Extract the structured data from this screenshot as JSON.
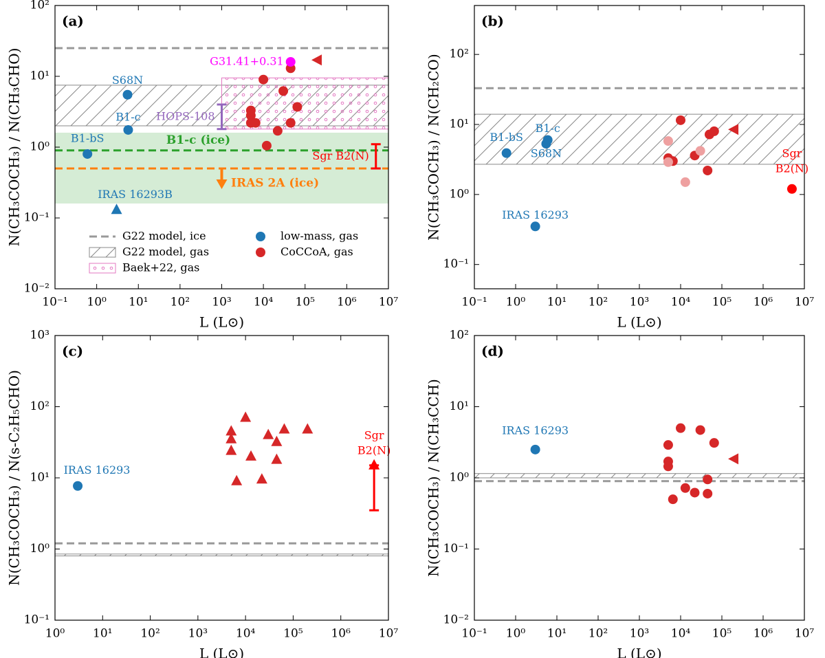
{
  "chart_data": [
    {
      "type": "scatter",
      "panel_label": "(a)",
      "xlabel": "L (L⊙)",
      "ylabel": "N(CH₃COCH₃)  /  N(CH₃CHO)",
      "xscale": "log",
      "yscale": "log",
      "xlim": [
        0.1,
        10000000
      ],
      "ylim": [
        0.01,
        100
      ],
      "xticks": [
        {
          "value": 0.1,
          "label": "10⁻¹"
        },
        {
          "value": 1,
          "label": "10⁰"
        },
        {
          "value": 10,
          "label": "10¹"
        },
        {
          "value": 100,
          "label": "10²"
        },
        {
          "value": 1000,
          "label": "10³"
        },
        {
          "value": 10000,
          "label": "10⁴"
        },
        {
          "value": 100000,
          "label": "10⁵"
        },
        {
          "value": 1000000,
          "label": "10⁶"
        },
        {
          "value": 10000000,
          "label": "10⁷"
        }
      ],
      "yticks": [
        {
          "value": 0.01,
          "label": "10⁻²"
        },
        {
          "value": 0.1,
          "label": "10⁻¹"
        },
        {
          "value": 1,
          "label": "10⁰"
        },
        {
          "value": 10,
          "label": "10¹"
        },
        {
          "value": 100,
          "label": "10²"
        }
      ],
      "bands": [
        {
          "name": "G22 model, gas",
          "low": 2,
          "high": 7.5,
          "color": "#888888",
          "pattern": "hatch"
        },
        {
          "name": "Baek+22, gas",
          "xrange": [
            1000,
            10000000
          ],
          "low": 1.8,
          "high": 9.5,
          "color": "#e377c2",
          "pattern": "dots"
        },
        {
          "low": 0.16,
          "high": 1.6,
          "color": "#2ca02c",
          "pattern": "fill"
        }
      ],
      "hlines": [
        {
          "name": "G22 model, ice",
          "value": 25,
          "color": "#999999"
        },
        {
          "label": "B1-c (ice)",
          "value": 0.9,
          "color": "#2ca02c"
        },
        {
          "label": "IRAS 2A (ice)",
          "value": 0.5,
          "color": "#ff7f0e",
          "arrow_x": 1000
        }
      ],
      "ranges": [
        {
          "label": "HOPS-108",
          "x": 1000,
          "low": 1.8,
          "high": 4,
          "color": "#9467bd"
        },
        {
          "label": "Sgr B2(N)",
          "x": 5000000,
          "low": 0.5,
          "high": 1.1,
          "color": "#ff0000"
        }
      ],
      "series": [
        {
          "name": "low-mass, gas",
          "color": "#1f77b4",
          "x": [
            5.5,
            5.7,
            0.6,
            3
          ],
          "values": [
            5.5,
            1.75,
            0.8,
            0.13
          ],
          "markers": [
            "circle",
            "circle",
            "circle",
            "up"
          ],
          "labels": [
            "S68N",
            "B1-c",
            "B1-bS",
            "IRAS 16293B"
          ]
        },
        {
          "name": "CoCCoA, gas",
          "color": "#d62728",
          "x": [
            10000,
            30000,
            45000,
            5000,
            5000,
            5000,
            6500,
            22000,
            12000,
            45000,
            65000,
            200000
          ],
          "values": [
            9,
            6.2,
            13,
            3.3,
            2.8,
            2.2,
            2.2,
            1.7,
            1.05,
            2.2,
            3.7,
            17
          ],
          "markers": [
            "circle",
            "circle",
            "circle",
            "circle",
            "circle",
            "circle",
            "circle",
            "circle",
            "circle",
            "circle",
            "circle",
            "left"
          ]
        },
        {
          "color": "#ff00ff",
          "x": [
            45000
          ],
          "values": [
            16
          ],
          "markers": [
            "circle"
          ],
          "labels": [
            "G31.41+0.31"
          ]
        }
      ],
      "legend": "lower left"
    },
    {
      "type": "scatter",
      "panel_label": "(b)",
      "xlabel": "L (L⊙)",
      "ylabel": "N(CH₃COCH₃)  /  N(CH₂CO)",
      "xscale": "log",
      "yscale": "log",
      "xlim": [
        0.1,
        10000000
      ],
      "ylim": [
        0.045,
        500
      ],
      "xticks": [
        {
          "value": 0.1,
          "label": "10⁻¹"
        },
        {
          "value": 1,
          "label": "10⁰"
        },
        {
          "value": 10,
          "label": "10¹"
        },
        {
          "value": 100,
          "label": "10²"
        },
        {
          "value": 1000,
          "label": "10³"
        },
        {
          "value": 10000,
          "label": "10⁴"
        },
        {
          "value": 100000,
          "label": "10⁵"
        },
        {
          "value": 1000000,
          "label": "10⁶"
        },
        {
          "value": 10000000,
          "label": "10⁷"
        }
      ],
      "yticks": [
        {
          "value": 0.1,
          "label": "10⁻¹"
        },
        {
          "value": 1,
          "label": "10⁰"
        },
        {
          "value": 10,
          "label": "10¹"
        },
        {
          "value": 100,
          "label": "10²"
        }
      ],
      "bands": [
        {
          "low": 2.7,
          "high": 14,
          "color": "#888888",
          "pattern": "hatch"
        }
      ],
      "hlines": [
        {
          "value": 33,
          "color": "#999999"
        }
      ],
      "series": [
        {
          "color": "#1f77b4",
          "x": [
            0.6,
            6,
            5.5,
            3
          ],
          "values": [
            3.9,
            6,
            5.3,
            0.35
          ],
          "markers": [
            "circle",
            "circle",
            "circle",
            "circle"
          ],
          "labels": [
            "B1-bS",
            "B1-c",
            "S68N",
            "IRAS 16293"
          ]
        },
        {
          "color": "#d62728",
          "x": [
            10000,
            5000,
            6500,
            22000,
            50000,
            65000,
            45000,
            200000
          ],
          "values": [
            11.5,
            3.3,
            3.0,
            3.6,
            7.2,
            8,
            2.2,
            8.5
          ],
          "markers": [
            "circle",
            "circle",
            "circle",
            "circle",
            "circle",
            "circle",
            "circle",
            "left"
          ]
        },
        {
          "color": "#eea0a0",
          "x": [
            5000,
            5000,
            13000,
            30000
          ],
          "values": [
            5.8,
            2.9,
            1.5,
            4.2
          ],
          "markers": [
            "circle",
            "circle",
            "circle",
            "circle"
          ]
        },
        {
          "color": "#ff0000",
          "x": [
            5000000
          ],
          "values": [
            1.2
          ],
          "markers": [
            "circle"
          ],
          "labels": [
            [
              "Sgr",
              "B2(N)"
            ]
          ]
        }
      ]
    },
    {
      "type": "scatter",
      "panel_label": "(c)",
      "xlabel": "L (L⊙)",
      "ylabel": "N(CH₃COCH₃)  /  N(s-C₂H₅CHO)",
      "xscale": "log",
      "yscale": "log",
      "xlim": [
        1,
        10000000
      ],
      "ylim": [
        0.1,
        1000
      ],
      "xticks": [
        {
          "value": 1,
          "label": "10⁰"
        },
        {
          "value": 10,
          "label": "10¹"
        },
        {
          "value": 100,
          "label": "10²"
        },
        {
          "value": 1000,
          "label": "10³"
        },
        {
          "value": 10000,
          "label": "10⁴"
        },
        {
          "value": 100000,
          "label": "10⁵"
        },
        {
          "value": 1000000,
          "label": "10⁶"
        },
        {
          "value": 10000000,
          "label": "10⁷"
        }
      ],
      "yticks": [
        {
          "value": 0.1,
          "label": "10⁻¹"
        },
        {
          "value": 1,
          "label": "10⁰"
        },
        {
          "value": 10,
          "label": "10¹"
        },
        {
          "value": 100,
          "label": "10²"
        },
        {
          "value": 1000,
          "label": "10³"
        }
      ],
      "bands": [
        {
          "low": 0.8,
          "high": 0.85,
          "color": "#888888",
          "pattern": "hatch"
        }
      ],
      "hlines": [
        {
          "value": 1.2,
          "color": "#999999"
        }
      ],
      "ranges": [
        {
          "x": 5000000,
          "low": 3.5,
          "high": 15,
          "color": "#ff0000"
        }
      ],
      "series": [
        {
          "color": "#1f77b4",
          "x": [
            3
          ],
          "values": [
            7.7
          ],
          "markers": [
            "circle"
          ],
          "labels": [
            "IRAS 16293"
          ]
        },
        {
          "color": "#d62728",
          "x": [
            5000,
            5000,
            5000,
            6500,
            10000,
            13000,
            22000,
            30000,
            45000,
            45000,
            65000,
            200000
          ],
          "values": [
            45,
            35,
            24,
            9,
            70,
            20,
            9.5,
            40,
            32,
            18,
            48,
            48
          ],
          "markers": [
            "up",
            "up",
            "up",
            "up",
            "up",
            "up",
            "up",
            "up",
            "up",
            "up",
            "up",
            "up"
          ]
        },
        {
          "color": "#ff0000",
          "x": [
            5000000
          ],
          "values": [
            15
          ],
          "markers": [
            "up"
          ],
          "labels": [
            [
              "Sgr",
              "B2(N)"
            ]
          ]
        }
      ]
    },
    {
      "type": "scatter",
      "panel_label": "(d)",
      "xlabel": "L (L⊙)",
      "ylabel": "N(CH₃COCH₃)  /  N(CH₃CCH)",
      "xscale": "log",
      "yscale": "log",
      "xlim": [
        0.1,
        10000000
      ],
      "ylim": [
        0.01,
        100
      ],
      "xticks": [
        {
          "value": 0.1,
          "label": "10⁻¹"
        },
        {
          "value": 1,
          "label": "10⁰"
        },
        {
          "value": 10,
          "label": "10¹"
        },
        {
          "value": 100,
          "label": "10²"
        },
        {
          "value": 1000,
          "label": "10³"
        },
        {
          "value": 10000,
          "label": "10⁴"
        },
        {
          "value": 100000,
          "label": "10⁵"
        },
        {
          "value": 1000000,
          "label": "10⁶"
        },
        {
          "value": 10000000,
          "label": "10⁷"
        }
      ],
      "yticks": [
        {
          "value": 0.01,
          "label": "10⁻²"
        },
        {
          "value": 0.1,
          "label": "10⁻¹"
        },
        {
          "value": 1,
          "label": "10⁰"
        },
        {
          "value": 10,
          "label": "10¹"
        },
        {
          "value": 100,
          "label": "10²"
        }
      ],
      "bands": [
        {
          "low": 1.0,
          "high": 1.15,
          "color": "#888888",
          "pattern": "hatch"
        }
      ],
      "hlines": [
        {
          "value": 0.9,
          "color": "#999999"
        }
      ],
      "series": [
        {
          "color": "#1f77b4",
          "x": [
            3
          ],
          "values": [
            2.5
          ],
          "markers": [
            "circle"
          ],
          "labels": [
            "IRAS 16293"
          ]
        },
        {
          "color": "#d62728",
          "x": [
            5000,
            5000,
            5000,
            6500,
            10000,
            13000,
            22000,
            30000,
            45000,
            45000,
            65000,
            200000
          ],
          "values": [
            2.9,
            1.7,
            1.45,
            0.5,
            5,
            0.72,
            0.62,
            4.7,
            0.95,
            0.6,
            3.1,
            1.85
          ],
          "markers": [
            "circle",
            "circle",
            "circle",
            "circle",
            "circle",
            "circle",
            "circle",
            "circle",
            "circle",
            "circle",
            "circle",
            "left"
          ]
        }
      ]
    }
  ]
}
